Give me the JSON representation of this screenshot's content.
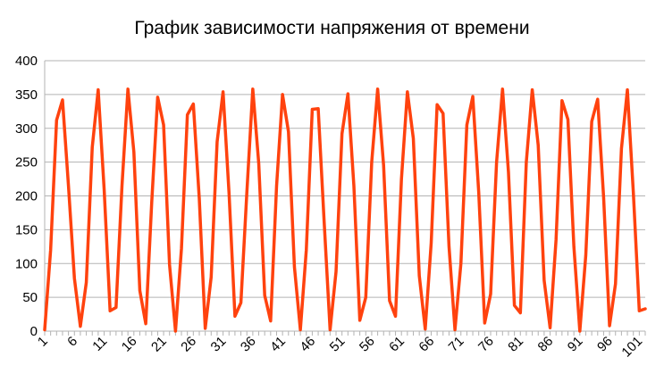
{
  "chart_data": {
    "type": "line",
    "title": "График зависимости напряжения от времени",
    "xlabel": "",
    "ylabel": "",
    "ylim": [
      0,
      400
    ],
    "yticks": [
      0,
      50,
      100,
      150,
      200,
      250,
      300,
      350,
      400
    ],
    "xtick_labels": [
      "1",
      "6",
      "11",
      "16",
      "21",
      "26",
      "31",
      "36",
      "41",
      "46",
      "51",
      "56",
      "61",
      "66",
      "71",
      "76",
      "81",
      "86",
      "91",
      "96",
      "101"
    ],
    "x_range": [
      1,
      102
    ],
    "grid": "horizontal",
    "legend": "none",
    "series_color": "#ff420e",
    "x": [
      1,
      2,
      3,
      4,
      5,
      6,
      7,
      8,
      9,
      10,
      11,
      12,
      13,
      14,
      15,
      16,
      17,
      18,
      19,
      20,
      21,
      22,
      23,
      24,
      25,
      26,
      27,
      28,
      29,
      30,
      31,
      32,
      33,
      34,
      35,
      36,
      37,
      38,
      39,
      40,
      41,
      42,
      43,
      44,
      45,
      46,
      47,
      48,
      49,
      50,
      51,
      52,
      53,
      54,
      55,
      56,
      57,
      58,
      59,
      60,
      61,
      62,
      63,
      64,
      65,
      66,
      67,
      68,
      69,
      70,
      71,
      72,
      73,
      74,
      75,
      76,
      77,
      78,
      79,
      80,
      81,
      82,
      83,
      84,
      85,
      86,
      87,
      88,
      89,
      90,
      91,
      92,
      93,
      94,
      95,
      96,
      97,
      98,
      99,
      100,
      101,
      102
    ],
    "values": [
      2,
      120,
      312,
      342,
      215,
      78,
      7,
      72,
      272,
      357,
      210,
      30,
      35,
      215,
      358,
      265,
      60,
      11,
      190,
      346,
      305,
      98,
      0,
      122,
      320,
      336,
      196,
      4,
      80,
      280,
      354,
      205,
      22,
      42,
      205,
      358,
      248,
      53,
      15,
      215,
      350,
      295,
      95,
      2,
      120,
      328,
      329,
      162,
      2,
      88,
      292,
      351,
      215,
      16,
      50,
      250,
      358,
      245,
      45,
      22,
      225,
      354,
      285,
      82,
      3,
      130,
      335,
      322,
      125,
      2,
      100,
      305,
      347,
      205,
      12,
      55,
      250,
      358,
      235,
      38,
      27,
      250,
      357,
      275,
      75,
      5,
      135,
      341,
      313,
      125,
      0,
      112,
      310,
      343,
      198,
      8,
      70,
      270,
      357,
      205,
      30,
      33
    ]
  }
}
